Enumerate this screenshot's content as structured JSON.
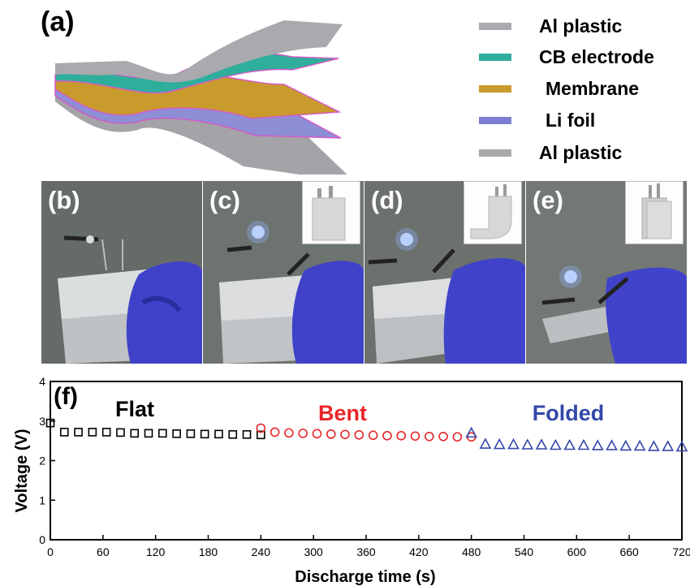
{
  "panels": {
    "a": "(a)",
    "b": "(b)",
    "c": "(c)",
    "d": "(d)",
    "e": "(e)",
    "f": "(f)"
  },
  "legend": [
    {
      "label": "Al plastic",
      "color": "#a9a9ae"
    },
    {
      "label": "CB electrode",
      "color": "#2fae9c"
    },
    {
      "label": "Membrane",
      "color": "#c99a2c"
    },
    {
      "label": "Li foil",
      "color": "#7d7fd3"
    },
    {
      "label": "Al plastic",
      "color": "#a9a9ae"
    }
  ],
  "photos": [
    {
      "id": "b",
      "state": "flat",
      "led_on": false,
      "inset_icon": "none"
    },
    {
      "id": "c",
      "state": "flat",
      "led_on": true,
      "inset_icon": "flat-pouch-icon"
    },
    {
      "id": "d",
      "state": "bent",
      "led_on": true,
      "inset_icon": "bent-pouch-icon"
    },
    {
      "id": "e",
      "state": "folded",
      "led_on": true,
      "inset_icon": "folded-pouch-icon"
    }
  ],
  "chart_data": {
    "type": "scatter",
    "xlabel": "Discharge time (s)",
    "ylabel": "Voltage (V)",
    "xlim": [
      0,
      720
    ],
    "ylim": [
      0,
      4
    ],
    "xticks": [
      0,
      60,
      120,
      180,
      240,
      300,
      360,
      420,
      480,
      540,
      600,
      660,
      720
    ],
    "yticks": [
      0,
      1,
      2,
      3,
      4
    ],
    "series": [
      {
        "name": "Flat",
        "color": "#000000",
        "marker": "square",
        "x": [
          0,
          16,
          32,
          48,
          64,
          80,
          96,
          112,
          128,
          144,
          160,
          176,
          192,
          208,
          224,
          240
        ],
        "y": [
          2.95,
          2.72,
          2.72,
          2.72,
          2.72,
          2.71,
          2.69,
          2.69,
          2.69,
          2.68,
          2.68,
          2.67,
          2.67,
          2.66,
          2.66,
          2.65
        ]
      },
      {
        "name": "Bent",
        "color": "#e8262a",
        "marker": "circle",
        "x": [
          240,
          256,
          272,
          288,
          304,
          320,
          336,
          352,
          368,
          384,
          400,
          416,
          432,
          448,
          464,
          480
        ],
        "y": [
          2.82,
          2.72,
          2.7,
          2.69,
          2.68,
          2.67,
          2.66,
          2.65,
          2.64,
          2.63,
          2.63,
          2.62,
          2.61,
          2.61,
          2.6,
          2.6
        ]
      },
      {
        "name": "Folded",
        "color": "#3347a8",
        "marker": "triangle",
        "x": [
          480,
          496,
          512,
          528,
          544,
          560,
          576,
          592,
          608,
          624,
          640,
          656,
          672,
          688,
          704,
          720
        ],
        "y": [
          2.7,
          2.42,
          2.41,
          2.41,
          2.4,
          2.4,
          2.39,
          2.39,
          2.39,
          2.38,
          2.38,
          2.37,
          2.37,
          2.36,
          2.36,
          2.35
        ]
      }
    ]
  }
}
